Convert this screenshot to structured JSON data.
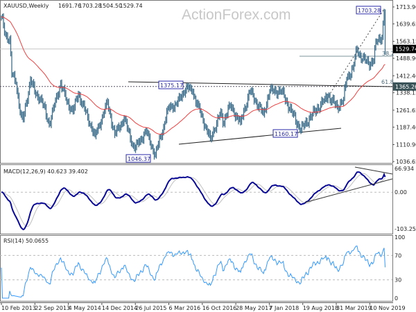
{
  "chart_data": {
    "type": "line",
    "title": "XAUUSD,Weekly",
    "ohlc_header": [
      "1691.76",
      "1703.28",
      "1504.50",
      "1529.74"
    ],
    "watermark": "ActionForex.com",
    "main": {
      "ylim": [
        1036.65,
        1713.9
      ],
      "yticks": [
        "1713.90",
        "1639.65",
        "1563.15",
        "1488.90",
        "1412.40",
        "1338.15",
        "1261.65",
        "1187.40",
        "1110.90",
        "1036.65"
      ],
      "current_price": "1529.74",
      "level_line": "1365.26",
      "fib_labels": [
        "38.2",
        "61.8"
      ],
      "annotations": [
        "1703.28",
        "1375.17",
        "1046.37",
        "1160.17"
      ],
      "colors": {
        "bars": "#3f6f8c",
        "moving_average": "#f04040",
        "annotation": "#2a2aa8"
      },
      "series": [
        {
          "type": "weekly close",
          "points": [
            [
              "2013-02-10",
              1670
            ],
            [
              "2013-03-10",
              1590
            ],
            [
              "2013-04-07",
              1575
            ],
            [
              "2013-04-21",
              1420
            ],
            [
              "2013-05-19",
              1380
            ],
            [
              "2013-06-23",
              1235
            ],
            [
              "2013-07-07",
              1220
            ],
            [
              "2013-08-25",
              1395
            ],
            [
              "2013-09-29",
              1330
            ],
            [
              "2013-11-03",
              1315
            ],
            [
              "2013-12-29",
              1200
            ],
            [
              "2014-03-16",
              1380
            ],
            [
              "2014-04-27",
              1300
            ],
            [
              "2014-06-08",
              1255
            ],
            [
              "2014-07-13",
              1335
            ],
            [
              "2014-09-14",
              1230
            ],
            [
              "2014-11-02",
              1150
            ],
            [
              "2014-11-30",
              1195
            ],
            [
              "2015-01-25",
              1295
            ],
            [
              "2015-03-15",
              1155
            ],
            [
              "2015-05-17",
              1225
            ],
            [
              "2015-07-26",
              1090
            ],
            [
              "2015-10-11",
              1170
            ],
            [
              "2015-12-13",
              1065
            ],
            [
              "2016-02-07",
              1190
            ],
            [
              "2016-03-06",
              1270
            ],
            [
              "2016-05-08",
              1290
            ],
            [
              "2016-07-10",
              1365
            ],
            [
              "2016-08-21",
              1340
            ],
            [
              "2016-10-09",
              1255
            ],
            [
              "2016-12-18",
              1135
            ],
            [
              "2017-02-26",
              1255
            ],
            [
              "2017-03-12",
              1200
            ],
            [
              "2017-04-23",
              1285
            ],
            [
              "2017-07-09",
              1210
            ],
            [
              "2017-09-10",
              1345
            ],
            [
              "2017-12-10",
              1245
            ],
            [
              "2018-01-21",
              1345
            ],
            [
              "2018-04-15",
              1345
            ],
            [
              "2018-05-20",
              1290
            ],
            [
              "2018-08-19",
              1175
            ],
            [
              "2018-10-14",
              1225
            ],
            [
              "2019-01-27",
              1310
            ],
            [
              "2019-02-17",
              1325
            ],
            [
              "2019-04-21",
              1275
            ],
            [
              "2019-06-02",
              1310
            ],
            [
              "2019-06-23",
              1400
            ],
            [
              "2019-08-04",
              1445
            ],
            [
              "2019-09-01",
              1530
            ],
            [
              "2019-09-22",
              1500
            ],
            [
              "2019-11-17",
              1465
            ],
            [
              "2019-12-22",
              1480
            ],
            [
              "2020-01-05",
              1560
            ],
            [
              "2020-02-16",
              1585
            ],
            [
              "2020-02-23",
              1640
            ],
            [
              "2020-03-01",
              1690
            ],
            [
              "2020-03-08",
              1529.74
            ]
          ]
        }
      ]
    },
    "macd": {
      "label": "MACD(12,26,9) 40.623 39.402",
      "ylim": [
        -103.255,
        66.934
      ],
      "yticks": [
        "66.934",
        "0.00",
        "-103.255"
      ],
      "colors": {
        "macd": "#0a0a96",
        "signal": "#c0c0c0"
      }
    },
    "rsi": {
      "label": "RSI(14) 50.0655",
      "ylim": [
        0,
        100
      ],
      "yticks": [
        "100",
        "70",
        "30",
        "0"
      ],
      "color": "#3399ff"
    },
    "xticks": [
      "10 Feb 2013",
      "22 Sep 2013",
      "4 May 2014",
      "14 Dec 2014",
      "26 Jul 2015",
      "6 Mar 2016",
      "16 Oct 2016",
      "28 May 2017",
      "7 Jan 2018",
      "19 Aug 2018",
      "31 Mar 2019",
      "10 Nov 2019"
    ]
  }
}
